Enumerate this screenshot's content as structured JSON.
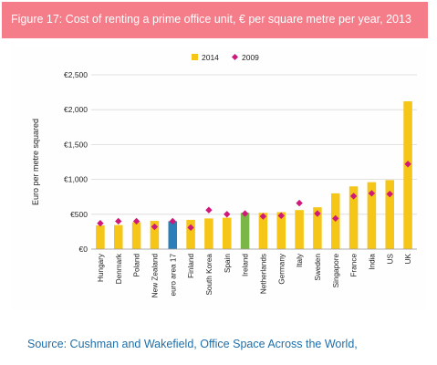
{
  "title": "Figure 17: Cost of renting a prime office unit, € per square metre per year, 2013",
  "source": "Source: Cushman and Wakefield, Office Space Across the World,",
  "chart_data": {
    "type": "bar",
    "title": "",
    "ylabel": "Euro per metre squared",
    "xlabel": "",
    "ylim": [
      0,
      2500
    ],
    "yticks": [
      0,
      500,
      1000,
      1500,
      2000,
      2500
    ],
    "ytick_labels": [
      "€0",
      "€500",
      "€1,000",
      "€1,500",
      "€2,000",
      "€2,500"
    ],
    "grid": true,
    "legend_position": "top-center",
    "categories": [
      "Hungary",
      "Denmark",
      "Poland",
      "New Zealand",
      "euro area 17",
      "Finland",
      "South Korea",
      "Spain",
      "Ireland",
      "Netherlands",
      "Germany",
      "Italy",
      "Sweden",
      "Singapore",
      "France",
      "India",
      "US",
      "UK"
    ],
    "series": [
      {
        "name": "2014",
        "kind": "bar",
        "color": "#f5c518",
        "values": [
          340,
          345,
          385,
          405,
          400,
          420,
          440,
          450,
          520,
          520,
          530,
          560,
          600,
          800,
          900,
          960,
          990,
          2120
        ],
        "highlight_colors": {
          "euro area 17": "#2a7fb8",
          "Ireland": "#7ab648"
        }
      },
      {
        "name": "2009",
        "kind": "marker",
        "color": "#d0177a",
        "values": [
          370,
          400,
          400,
          320,
          400,
          310,
          560,
          500,
          510,
          470,
          480,
          660,
          510,
          440,
          760,
          800,
          790,
          1220
        ]
      }
    ]
  }
}
